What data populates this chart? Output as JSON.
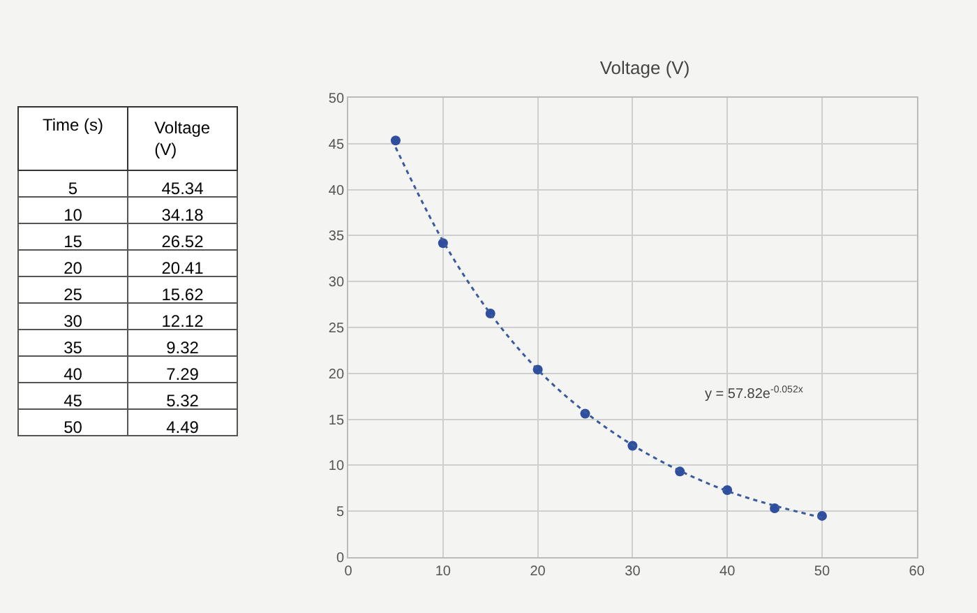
{
  "chart_data": {
    "type": "scatter",
    "title": "Voltage (V)",
    "x": [
      5,
      10,
      15,
      20,
      25,
      30,
      35,
      40,
      45,
      50
    ],
    "series": [
      {
        "color": "#2f4f9e",
        "values": [
          45.34,
          34.18,
          26.52,
          20.41,
          15.62,
          12.12,
          9.32,
          7.29,
          5.32,
          4.49
        ],
        "marker": "circle"
      },
      {
        "type": "line",
        "color": "#3a5a9e",
        "line_style": "dotted",
        "marker": "none",
        "x": [
          5,
          10,
          15,
          20,
          25,
          30,
          35,
          40,
          45,
          50
        ],
        "values": [
          44.6,
          34.4,
          26.5,
          20.4,
          15.8,
          12.2,
          9.4,
          7.2,
          5.6,
          4.3
        ]
      }
    ],
    "xlim": [
      0,
      60
    ],
    "xticks": [
      0,
      10,
      20,
      30,
      40,
      50,
      60
    ],
    "ylim": [
      0,
      50
    ],
    "yticks": [
      0,
      5,
      10,
      15,
      20,
      25,
      30,
      35,
      40,
      45,
      50
    ],
    "grid": true,
    "annotations": [
      "y = 57.82e$^{-0.052x}$",
      "Time (s)",
      "Voltage (V)",
      "5",
      "45.34",
      "10",
      "34.18",
      "15",
      "26.52",
      "20",
      "20.41",
      "25",
      "15.62",
      "30",
      "12.12",
      "35",
      "9.32",
      "40",
      "7.29",
      "45",
      "5.32",
      "50",
      "4.49"
    ]
  }
}
